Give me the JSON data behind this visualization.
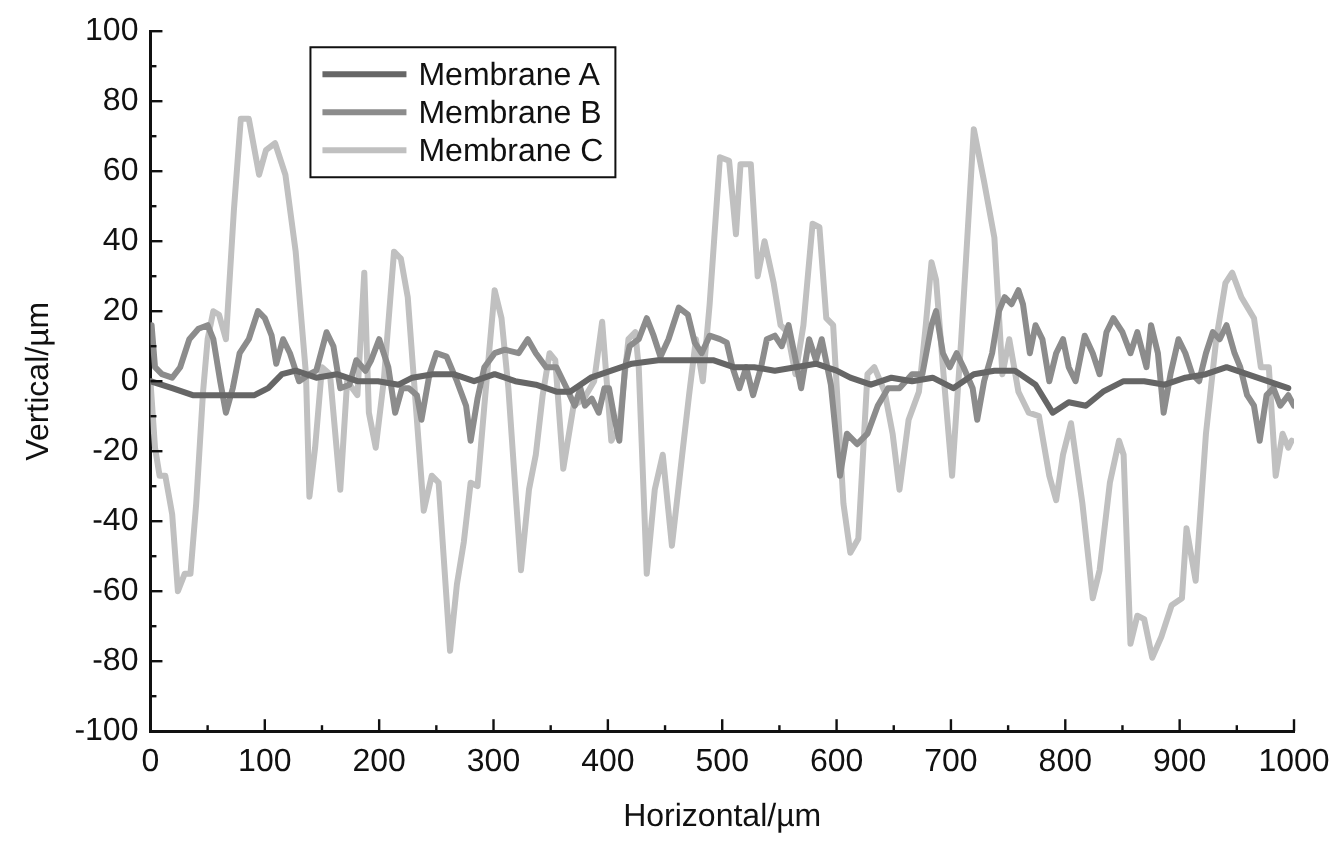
{
  "chart_data": {
    "type": "line",
    "xlabel": "Horizontal/µm",
    "ylabel": "Vertical/µm",
    "xlim": [
      0,
      1000
    ],
    "ylim": [
      -100,
      100
    ],
    "xticks": [
      0,
      {
        "value": 50,
        "label": null
      },
      100,
      {
        "value": 150,
        "label": null
      },
      200,
      {
        "value": 250,
        "label": null
      },
      300,
      {
        "value": 350,
        "label": null
      },
      400,
      {
        "value": 450,
        "label": null
      },
      500,
      {
        "value": 550,
        "label": null
      },
      600,
      {
        "value": 650,
        "label": null
      },
      700,
      {
        "value": 750,
        "label": null
      },
      800,
      {
        "value": 850,
        "label": null
      },
      900,
      {
        "value": 950,
        "label": null
      },
      1000
    ],
    "yticks": [
      -100,
      {
        "value": -90,
        "label": null
      },
      -80,
      {
        "value": -70,
        "label": null
      },
      -60,
      {
        "value": -50,
        "label": null
      },
      -40,
      {
        "value": -30,
        "label": null
      },
      -20,
      {
        "value": -10,
        "label": null
      },
      0,
      {
        "value": 10,
        "label": null
      },
      20,
      {
        "value": 30,
        "label": null
      },
      40,
      {
        "value": 50,
        "label": null
      },
      60,
      {
        "value": 70,
        "label": null
      },
      80,
      {
        "value": 90,
        "label": null
      },
      100
    ],
    "legend": "top left",
    "marker": "none",
    "line_style": "solid",
    "series": [
      {
        "name": "Membrane A",
        "color": "#666666",
        "x": [
          0,
          19,
          37,
          55,
          73,
          91,
          103,
          115,
          127,
          145,
          163,
          181,
          199,
          217,
          229,
          247,
          265,
          283,
          301,
          319,
          337,
          355,
          367,
          385,
          403,
          421,
          444,
          468,
          492,
          510,
          528,
          546,
          564,
          582,
          600,
          612,
          630,
          648,
          666,
          684,
          702,
          720,
          738,
          756,
          774,
          789,
          803,
          818,
          833,
          851,
          869,
          887,
          905,
          923,
          941,
          959,
          977,
          995
        ],
        "values": [
          0,
          -2,
          -4,
          -4,
          -4,
          -4,
          -2,
          2,
          3,
          1,
          2,
          0,
          0,
          -1,
          1,
          2,
          2,
          0,
          2,
          0,
          -1,
          -3,
          -3,
          1,
          3,
          5,
          6,
          6,
          6,
          4,
          4,
          3,
          4,
          5,
          3,
          1,
          -1,
          1,
          0,
          1,
          -2,
          2,
          3,
          3,
          -1,
          -9,
          -6,
          -7,
          -3,
          0,
          0,
          -1,
          1,
          2,
          4,
          2,
          0,
          -2
        ]
      },
      {
        "name": "Membrane B",
        "color": "#8c8c8c",
        "x": [
          1,
          4,
          10,
          19,
          26,
          34,
          42,
          50,
          55,
          61,
          66,
          72,
          78,
          86,
          94,
          100,
          106,
          110,
          116,
          122,
          130,
          139,
          145,
          154,
          160,
          166,
          174,
          180,
          188,
          193,
          200,
          208,
          214,
          220,
          226,
          233,
          237,
          244,
          250,
          259,
          268,
          276,
          280,
          286,
          292,
          301,
          310,
          322,
          330,
          337,
          346,
          355,
          364,
          371,
          376,
          380,
          386,
          392,
          397,
          401,
          406,
          410,
          415,
          419,
          427,
          434,
          440,
          446,
          453,
          462,
          470,
          476,
          482,
          489,
          498,
          504,
          509,
          515,
          521,
          527,
          534,
          539,
          546,
          552,
          558,
          563,
          569,
          576,
          582,
          587,
          595,
          603,
          609,
          618,
          627,
          636,
          645,
          655,
          666,
          675,
          683,
          687,
          693,
          699,
          705,
          711,
          719,
          723,
          729,
          736,
          742,
          747,
          753,
          759,
          763,
          769,
          774,
          780,
          786,
          792,
          798,
          803,
          809,
          817,
          824,
          830,
          836,
          842,
          850,
          857,
          863,
          871,
          875,
          881,
          886,
          892,
          899,
          905,
          911,
          917,
          923,
          929,
          935,
          941,
          948,
          953,
          959,
          965,
          970,
          976,
          982,
          988,
          995,
          1000
        ],
        "values": [
          16,
          4,
          2,
          1,
          4,
          12,
          15,
          16,
          12,
          0,
          -9,
          -2,
          8,
          12,
          20,
          18,
          13,
          5,
          12,
          8,
          0,
          2,
          3,
          14,
          10,
          -2,
          -1,
          6,
          3,
          6,
          12,
          4,
          -9,
          -2,
          -2,
          -4,
          -11,
          2,
          8,
          7,
          0,
          -7,
          -17,
          -5,
          4,
          8,
          9,
          8,
          12,
          8,
          4,
          4,
          -2,
          -7,
          -2,
          -7,
          -5,
          -9,
          -2,
          -2,
          -11,
          -17,
          4,
          10,
          12,
          18,
          13,
          7,
          12,
          21,
          19,
          11,
          8,
          13,
          12,
          11,
          4,
          -2,
          4,
          -4,
          4,
          12,
          13,
          10,
          16,
          8,
          -2,
          12,
          6,
          12,
          -1,
          -27,
          -15,
          -18,
          -15,
          -7,
          -2,
          -2,
          2,
          2,
          16,
          20,
          8,
          4,
          8,
          4,
          -2,
          -11,
          0,
          8,
          20,
          24,
          22,
          26,
          22,
          8,
          16,
          12,
          0,
          8,
          12,
          4,
          0,
          13,
          8,
          2,
          14,
          18,
          14,
          8,
          14,
          4,
          16,
          8,
          -9,
          2,
          12,
          8,
          2,
          0,
          8,
          14,
          12,
          16,
          8,
          4,
          -4,
          -7,
          -17,
          -4,
          -2,
          -7,
          -4,
          -7
        ]
      },
      {
        "name": "Membrane C",
        "color": "#c0c0c0",
        "x": [
          0,
          4,
          8,
          13,
          19,
          24,
          30,
          35,
          40,
          46,
          50,
          55,
          60,
          66,
          73,
          79,
          86,
          95,
          101,
          109,
          118,
          127,
          136,
          139,
          144,
          150,
          157,
          166,
          172,
          181,
          187,
          191,
          197,
          204,
          213,
          219,
          225,
          233,
          239,
          246,
          252,
          262,
          268,
          274,
          280,
          286,
          292,
          301,
          307,
          313,
          324,
          331,
          337,
          343,
          349,
          354,
          361,
          370,
          379,
          388,
          395,
          403,
          410,
          418,
          424,
          427,
          434,
          441,
          448,
          456,
          465,
          471,
          477,
          483,
          489,
          498,
          506,
          512,
          516,
          525,
          531,
          537,
          545,
          551,
          557,
          564,
          571,
          579,
          585,
          591,
          597,
          606,
          612,
          619,
          627,
          633,
          642,
          649,
          655,
          663,
          672,
          678,
          683,
          687,
          693,
          701,
          709,
          720,
          729,
          738,
          745,
          751,
          759,
          768,
          777,
          786,
          792,
          798,
          805,
          815,
          824,
          830,
          839,
          847,
          851,
          857,
          863,
          869,
          876,
          884,
          893,
          902,
          906,
          914,
          923,
          932,
          940,
          946,
          954,
          965,
          971,
          978,
          984,
          990,
          995,
          998
        ],
        "values": [
          0,
          -19,
          -27,
          -27,
          -38,
          -60,
          -55,
          -55,
          -35,
          -3,
          12,
          20,
          19,
          12,
          49,
          75,
          75,
          59,
          66,
          68,
          59,
          37,
          2,
          -33,
          -19,
          4,
          2,
          -31,
          0,
          -4,
          31,
          -9,
          -19,
          0,
          37,
          35,
          24,
          -11,
          -37,
          -27,
          -29,
          -77,
          -58,
          -46,
          -29,
          -30,
          -7,
          26,
          18,
          -2,
          -54,
          -31,
          -21,
          -4,
          8,
          6,
          -25,
          -7,
          -5,
          0,
          17,
          -17,
          -13,
          12,
          14,
          4,
          -55,
          -31,
          -21,
          -47,
          -21,
          -4,
          12,
          0,
          22,
          64,
          63,
          42,
          62,
          62,
          30,
          40,
          28,
          16,
          14,
          2,
          16,
          45,
          44,
          18,
          16,
          -35,
          -49,
          -45,
          2,
          4,
          -3,
          -15,
          -31,
          -11,
          -3,
          16,
          34,
          29,
          4,
          -27,
          12,
          72,
          57,
          41,
          2,
          12,
          -3,
          -9,
          -10,
          -27,
          -34,
          -21,
          -12,
          -35,
          -62,
          -54,
          -29,
          -17,
          -21,
          -75,
          -67,
          -68,
          -79,
          -73,
          -64,
          -62,
          -42,
          -57,
          -15,
          12,
          28,
          31,
          24,
          18,
          4,
          4,
          -27,
          -15,
          -19,
          -17
        ]
      }
    ]
  }
}
